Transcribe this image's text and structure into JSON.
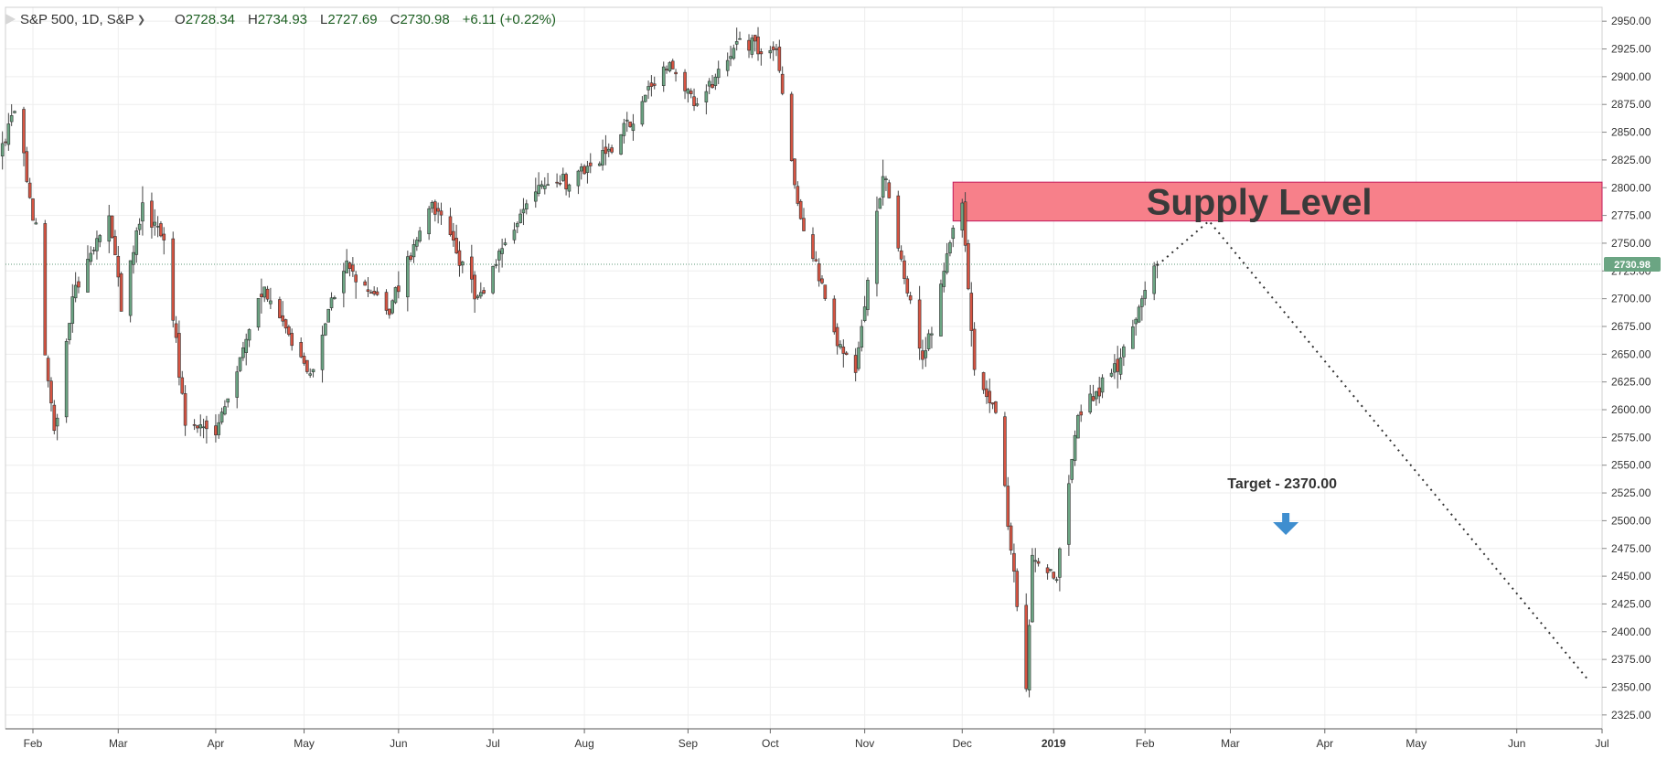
{
  "header": {
    "symbol": "S&P 500, 1D, S&P",
    "open_key": "O",
    "open": "2728.34",
    "high_key": "H",
    "high": "2734.93",
    "low_key": "L",
    "low": "2727.69",
    "close_key": "C",
    "close": "2730.98",
    "change": "+6.11 (+0.22%)"
  },
  "colors": {
    "up": "#6ba583",
    "down": "#d75442",
    "wick": "#444444",
    "grid": "#eeeeee",
    "supply_fill": "#f7808a",
    "supply_border": "#c2185b",
    "arrow": "#3f8ecf",
    "price_label": "#6ba583"
  },
  "chart_data": {
    "type": "candlestick",
    "symbol": "S&P 500",
    "interval": "1D",
    "ylim": [
      2312.5,
      2962.5
    ],
    "y_ticks": [
      2325,
      2350,
      2375,
      2400,
      2425,
      2450,
      2475,
      2500,
      2525,
      2550,
      2575,
      2600,
      2625,
      2650,
      2675,
      2700,
      2725,
      2750,
      2775,
      2800,
      2825,
      2850,
      2875,
      2900,
      2925,
      2950
    ],
    "x_ticks": [
      {
        "label": "Feb",
        "date": "2018-02-01"
      },
      {
        "label": "Mar",
        "date": "2018-03-01"
      },
      {
        "label": "Apr",
        "date": "2018-04-02"
      },
      {
        "label": "May",
        "date": "2018-05-01"
      },
      {
        "label": "Jun",
        "date": "2018-06-01"
      },
      {
        "label": "Jul",
        "date": "2018-07-02"
      },
      {
        "label": "Aug",
        "date": "2018-08-01"
      },
      {
        "label": "Sep",
        "date": "2018-09-04"
      },
      {
        "label": "Oct",
        "date": "2018-10-01"
      },
      {
        "label": "Nov",
        "date": "2018-11-01"
      },
      {
        "label": "Dec",
        "date": "2018-12-03"
      },
      {
        "label": "2019",
        "date": "2019-01-02"
      },
      {
        "label": "Feb",
        "date": "2019-02-01"
      },
      {
        "label": "Mar",
        "date": "2019-03-01"
      },
      {
        "label": "Apr",
        "date": "2019-04-01"
      },
      {
        "label": "May",
        "date": "2019-05-01"
      },
      {
        "label": "Jun",
        "date": "2019-06-03"
      },
      {
        "label": "Jul",
        "date": "2019-07-01"
      }
    ],
    "x_range": [
      "2018-01-23",
      "2019-07-01"
    ],
    "last_price": 2730.98,
    "last_price_label": "2730.98",
    "anchors": [
      {
        "date": "2018-01-22",
        "close": 2832
      },
      {
        "date": "2018-01-26",
        "close": 2873
      },
      {
        "date": "2018-02-02",
        "close": 2762
      },
      {
        "date": "2018-02-05",
        "close": 2649
      },
      {
        "date": "2018-02-08",
        "close": 2581
      },
      {
        "date": "2018-02-14",
        "close": 2698
      },
      {
        "date": "2018-02-26",
        "close": 2780
      },
      {
        "date": "2018-03-02",
        "close": 2691
      },
      {
        "date": "2018-03-09",
        "close": 2787
      },
      {
        "date": "2018-03-16",
        "close": 2752
      },
      {
        "date": "2018-03-23",
        "close": 2588
      },
      {
        "date": "2018-04-02",
        "close": 2582
      },
      {
        "date": "2018-04-18",
        "close": 2708
      },
      {
        "date": "2018-05-03",
        "close": 2630
      },
      {
        "date": "2018-05-14",
        "close": 2730
      },
      {
        "date": "2018-05-29",
        "close": 2690
      },
      {
        "date": "2018-06-12",
        "close": 2787
      },
      {
        "date": "2018-06-27",
        "close": 2699
      },
      {
        "date": "2018-07-16",
        "close": 2798
      },
      {
        "date": "2018-08-01",
        "close": 2813
      },
      {
        "date": "2018-08-10",
        "close": 2833
      },
      {
        "date": "2018-08-29",
        "close": 2914
      },
      {
        "date": "2018-09-07",
        "close": 2872
      },
      {
        "date": "2018-09-20",
        "close": 2930
      },
      {
        "date": "2018-10-03",
        "close": 2925
      },
      {
        "date": "2018-10-10",
        "close": 2785
      },
      {
        "date": "2018-10-24",
        "close": 2656
      },
      {
        "date": "2018-10-29",
        "close": 2641
      },
      {
        "date": "2018-11-07",
        "close": 2813
      },
      {
        "date": "2018-11-20",
        "close": 2642
      },
      {
        "date": "2018-11-30",
        "close": 2760
      },
      {
        "date": "2018-12-03",
        "close": 2790
      },
      {
        "date": "2018-12-07",
        "close": 2633
      },
      {
        "date": "2018-12-14",
        "close": 2599
      },
      {
        "date": "2018-12-24",
        "close": 2351
      },
      {
        "date": "2018-12-26",
        "close": 2467
      },
      {
        "date": "2019-01-03",
        "close": 2448
      },
      {
        "date": "2019-01-10",
        "close": 2596
      },
      {
        "date": "2019-01-23",
        "close": 2639
      },
      {
        "date": "2019-02-01",
        "close": 2706
      },
      {
        "date": "2019-02-04",
        "close": 2725
      },
      {
        "date": "2019-02-05",
        "close": 2731
      }
    ],
    "annotations": {
      "supply_zone": {
        "label": "Supply Level",
        "start": "2018-11-30",
        "end": "2019-07-01",
        "low": 2770,
        "high": 2805
      },
      "projection": [
        {
          "date": "2019-02-05",
          "price": 2730
        },
        {
          "date": "2019-02-22",
          "price": 2770
        },
        {
          "date": "2019-06-26",
          "price": 2358
        }
      ],
      "target": {
        "label": "Target - 2370.00",
        "date": "2019-03-18",
        "price": 2525
      }
    }
  }
}
